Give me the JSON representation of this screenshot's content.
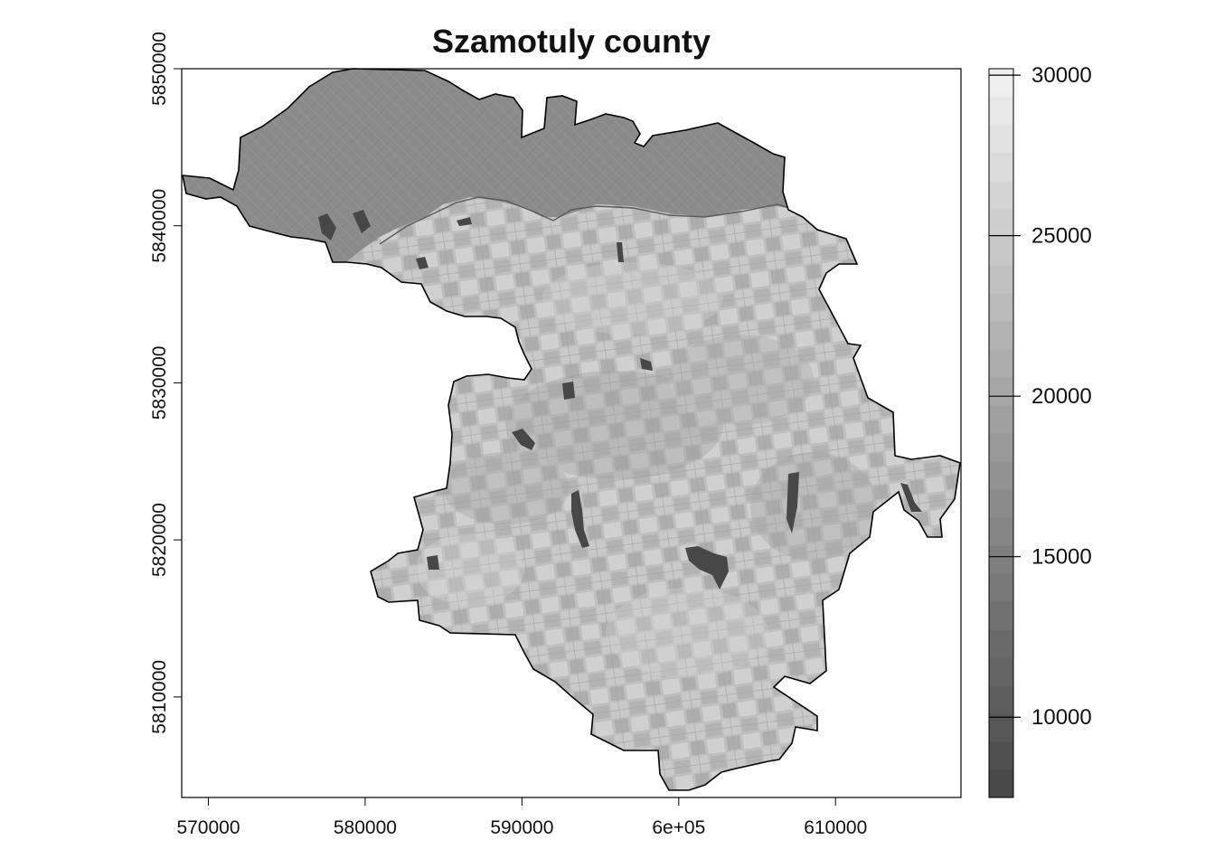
{
  "map": {
    "title": "Szamotuly county",
    "x_ticks": [
      {
        "value": 570000,
        "label": "570000"
      },
      {
        "value": 580000,
        "label": "580000"
      },
      {
        "value": 590000,
        "label": "590000"
      },
      {
        "value": 600000,
        "label": "6e+05"
      },
      {
        "value": 610000,
        "label": "610000"
      }
    ],
    "y_ticks": [
      {
        "value": 5810000,
        "label": "5810000"
      },
      {
        "value": 5820000,
        "label": "5820000"
      },
      {
        "value": 5830000,
        "label": "5830000"
      },
      {
        "value": 5840000,
        "label": "5840000"
      },
      {
        "value": 5850000,
        "label": "5850000"
      }
    ],
    "x_range": [
      568300,
      618000
    ],
    "y_range": [
      5803600,
      5850000
    ],
    "colors": {
      "northern_forest": "#8a8a8a",
      "farmland": "#bdbdbd",
      "water": "#4a4a4a",
      "outline": "#000000"
    }
  },
  "legend": {
    "range": [
      7500,
      30200
    ],
    "ticks": [
      {
        "value": 10000,
        "label": "10000"
      },
      {
        "value": 15000,
        "label": "15000"
      },
      {
        "value": 20000,
        "label": "20000"
      },
      {
        "value": 25000,
        "label": "25000"
      },
      {
        "value": 30000,
        "label": "30000"
      }
    ],
    "color_low": "#464646",
    "color_high": "#f2f2f2"
  }
}
